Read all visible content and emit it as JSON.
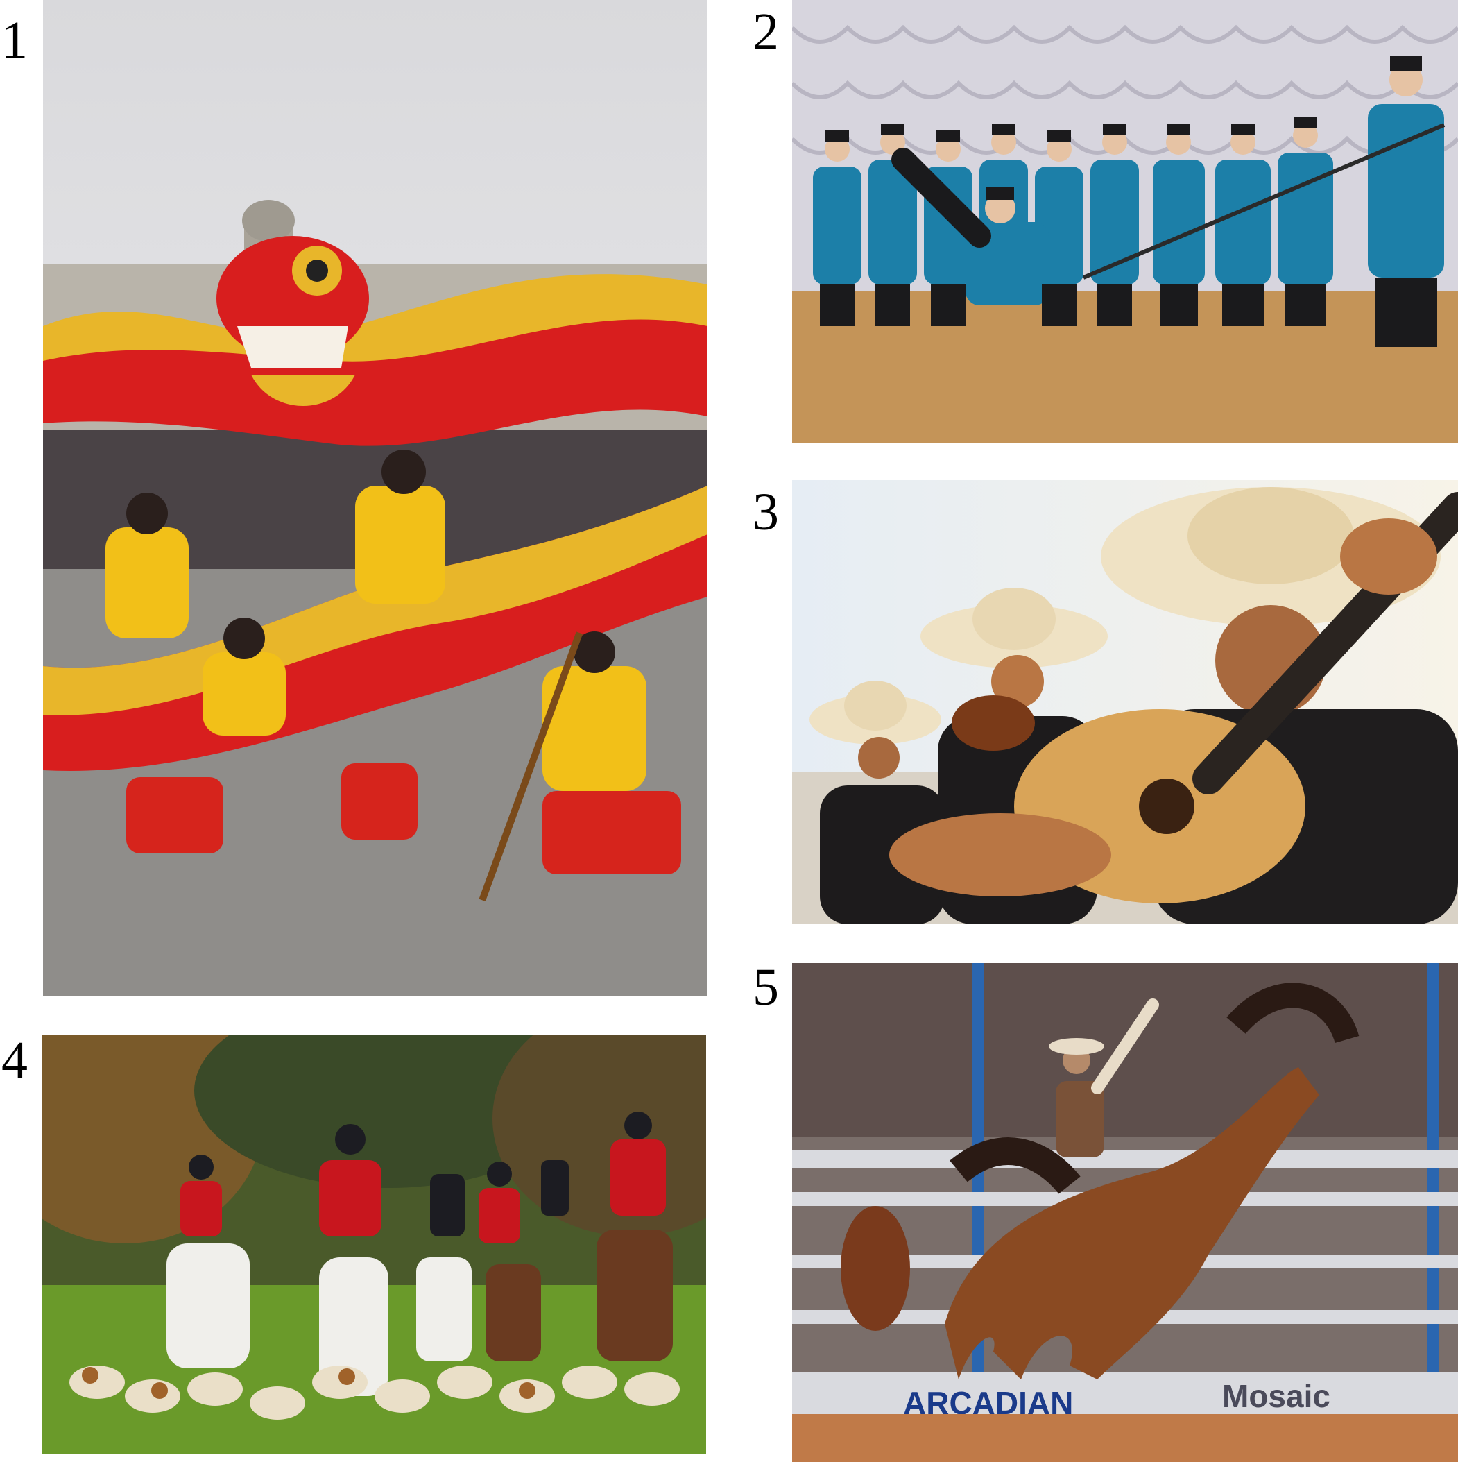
{
  "figure": {
    "panels": [
      {
        "number": "1",
        "subject": "dragon-dance"
      },
      {
        "number": "2",
        "subject": "cossack-dance"
      },
      {
        "number": "3",
        "subject": "mariachi-band"
      },
      {
        "number": "4",
        "subject": "fox-hunt"
      },
      {
        "number": "5",
        "subject": "rodeo",
        "signs": [
          "ARCADIAN",
          "Mosaic"
        ]
      }
    ]
  },
  "colors": {
    "dragon_red": "#d81e1e",
    "dragon_gold": "#e8b62a",
    "cossack_blue": "#1c7fa8",
    "hunt_coat_red": "#c8161e",
    "rodeo_horse_brown": "#8a4a22"
  }
}
